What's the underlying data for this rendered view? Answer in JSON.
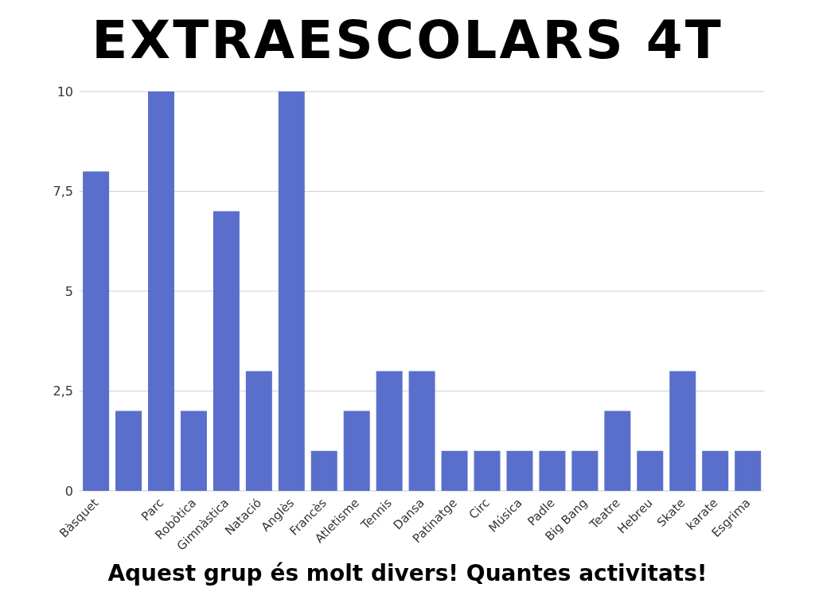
{
  "chart_data": {
    "type": "bar",
    "title": "EXTRAESCOLARS 4T",
    "categories": [
      "Bàsquet",
      null,
      "Parc",
      "Robòtica",
      "Gimnàstica",
      "Natació",
      "Anglès",
      "Francès",
      "Atletisme",
      "Tennis",
      "Dansa",
      "Patinatge",
      "Circ",
      "Música",
      "Padle",
      "Big Bang",
      "Teatre",
      "Hebreu",
      "Skate",
      "karate",
      "Esgrima"
    ],
    "values": [
      8,
      2,
      10,
      2,
      7,
      3,
      10,
      1,
      2,
      3,
      3,
      1,
      1,
      1,
      1,
      1,
      2,
      1,
      3,
      1,
      1
    ],
    "color": "#5a6fcc",
    "ylim": [
      0,
      10
    ],
    "yticks": [
      0,
      {
        "value": 2.5,
        "label": "2,5"
      },
      5,
      {
        "value": 7.5,
        "label": "7,5"
      },
      10
    ],
    "grid": "y",
    "annotations": [
      "Aquest grup és molt divers! Quantes activitats!"
    ]
  }
}
